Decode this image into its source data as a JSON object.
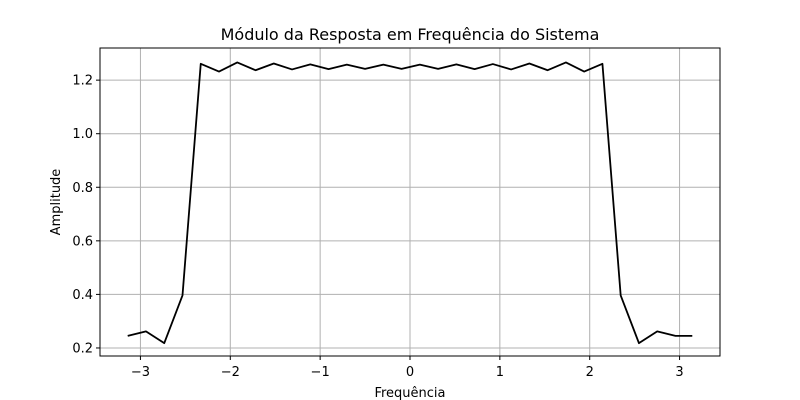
{
  "chart_data": {
    "type": "line",
    "title": "Módulo da Resposta em Frequência do Sistema",
    "xlabel": "Frequência",
    "ylabel": "Amplitude",
    "xlim": [
      -3.45,
      3.45
    ],
    "ylim": [
      0.17,
      1.32
    ],
    "grid": true,
    "xticks": [
      -3,
      -2,
      -1,
      0,
      1,
      2,
      3
    ],
    "xtick_labels": [
      "−3",
      "−2",
      "−1",
      "0",
      "1",
      "2",
      "3"
    ],
    "yticks": [
      0.2,
      0.4,
      0.6,
      0.8,
      1.0,
      1.2
    ],
    "ytick_labels": [
      "0.2",
      "0.4",
      "0.6",
      "0.8",
      "1.0",
      "1.2"
    ],
    "series": [
      {
        "color": "#000000",
        "x": [
          -3.1416,
          -2.9384,
          -2.7352,
          -2.532,
          -2.3288,
          -2.1256,
          -1.9224,
          -1.7192,
          -1.516,
          -1.3128,
          -1.1096,
          -0.9064,
          -0.7032,
          -0.5,
          -0.2968,
          -0.0936,
          0.1096,
          0.3128,
          0.516,
          0.7192,
          0.9224,
          1.1256,
          1.3288,
          1.532,
          1.7352,
          1.9384,
          2.1416,
          2.3448,
          2.548,
          2.7512,
          2.9544,
          3.1416
        ],
        "y": [
          0.245,
          0.262,
          0.218,
          0.396,
          1.261,
          1.232,
          1.266,
          1.237,
          1.262,
          1.24,
          1.259,
          1.241,
          1.258,
          1.242,
          1.258,
          1.242,
          1.258,
          1.242,
          1.259,
          1.241,
          1.26,
          1.24,
          1.262,
          1.237,
          1.266,
          1.232,
          1.261,
          0.396,
          0.218,
          0.262,
          0.245,
          0.245
        ]
      }
    ]
  }
}
